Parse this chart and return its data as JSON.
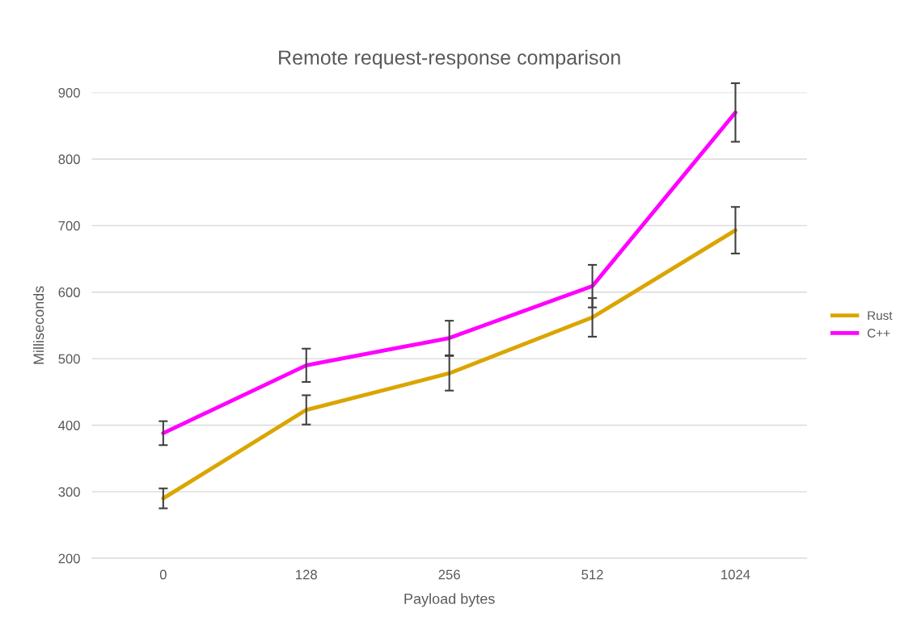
{
  "chart_data": {
    "type": "line",
    "title": "Remote request-response comparison",
    "xlabel": "Payload bytes",
    "ylabel": "Milliseconds",
    "categories": [
      "0",
      "128",
      "256",
      "512",
      "1024"
    ],
    "series": [
      {
        "name": "Rust",
        "color": "#dba500",
        "values": [
          290,
          423,
          478,
          562,
          693
        ],
        "errors": [
          15,
          22,
          26,
          29,
          35
        ]
      },
      {
        "name": "C++",
        "color": "#ff00ff",
        "values": [
          388,
          490,
          531,
          609,
          870
        ],
        "errors": [
          18,
          25,
          26,
          32,
          44
        ]
      }
    ],
    "ylim": [
      200,
      900
    ],
    "yticks": [
      200,
      300,
      400,
      500,
      600,
      700,
      800,
      900
    ],
    "grid": "y",
    "legend": "right",
    "marker": "none",
    "line_style": "solid"
  }
}
